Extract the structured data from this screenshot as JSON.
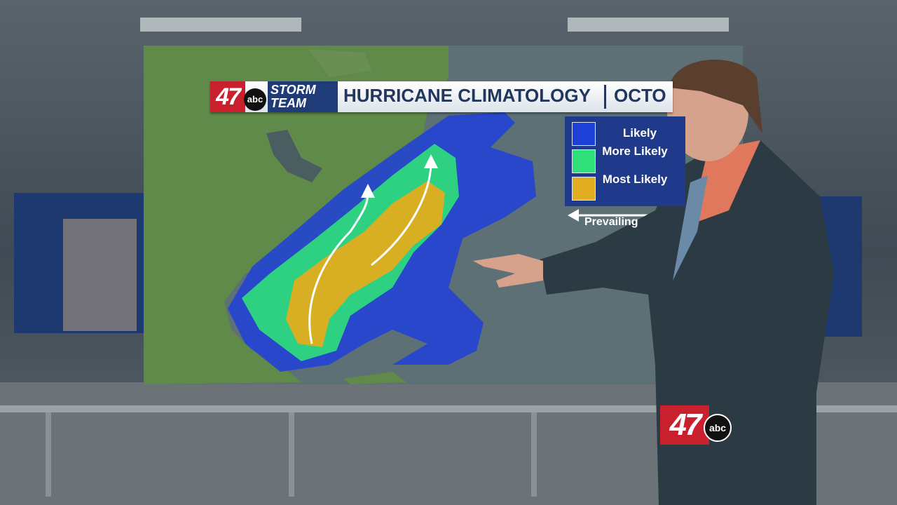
{
  "graphic": {
    "station_number": "47",
    "network": "abc",
    "brand": "STORM TEAM",
    "title": "HURRICANE CLIMATOLOGY",
    "title_suffix": "OCTO"
  },
  "legend": {
    "items": [
      {
        "label": "Likely",
        "color": "#1f3fd9"
      },
      {
        "label": "More Likely",
        "color": "#2fe07a"
      },
      {
        "label": "Most Likely",
        "color": "#e2ad1e"
      }
    ]
  },
  "wind_note": "Prevailing",
  "corner_bug": {
    "number": "47",
    "network": "abc"
  },
  "colors": {
    "ocean": "#5d7076",
    "land": "#5f8a4a",
    "title_text": "#23365d",
    "brand_red": "#c8202c"
  }
}
